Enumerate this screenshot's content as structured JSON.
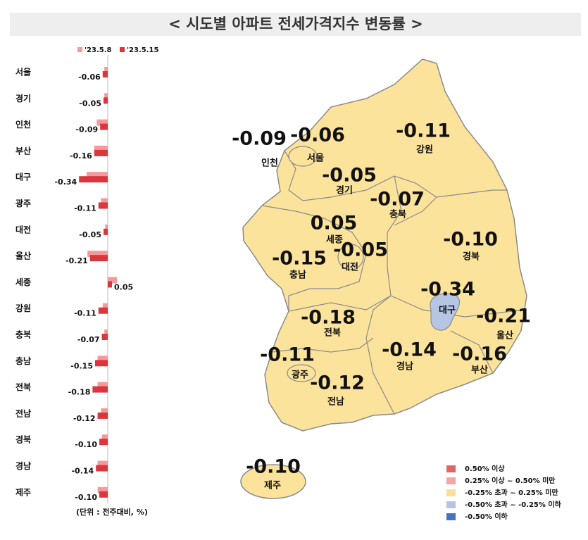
{
  "title": "< 시도별 아파트 전세가격지수 변동률 >",
  "chart_data": {
    "type": "bar",
    "orientation": "horizontal",
    "categories": [
      "서울",
      "경기",
      "인천",
      "부산",
      "대구",
      "광주",
      "대전",
      "울산",
      "세종",
      "강원",
      "충북",
      "충남",
      "전북",
      "전남",
      "경북",
      "경남",
      "제주"
    ],
    "series": [
      {
        "name": "'23.5.8",
        "color": "#f4999c",
        "values": [
          -0.04,
          -0.04,
          -0.13,
          -0.16,
          -0.25,
          -0.08,
          -0.03,
          -0.24,
          0.11,
          -0.06,
          -0.04,
          -0.12,
          -0.12,
          -0.08,
          -0.07,
          -0.12,
          -0.12
        ]
      },
      {
        "name": "'23.5.15",
        "color": "#d9363e",
        "values": [
          -0.06,
          -0.05,
          -0.09,
          -0.16,
          -0.34,
          -0.11,
          -0.05,
          -0.21,
          0.05,
          -0.11,
          -0.07,
          -0.15,
          -0.18,
          -0.12,
          -0.1,
          -0.14,
          -0.1
        ],
        "value_labels": [
          "-0.06",
          "-0.05",
          "-0.09",
          "-0.16",
          "-0.34",
          "-0.11",
          "-0.05",
          "-0.21",
          "0.05",
          "-0.11",
          "-0.07",
          "-0.15",
          "-0.18",
          "-0.12",
          "-0.10",
          "-0.14",
          "-0.10"
        ]
      }
    ],
    "xlim": [
      -0.4,
      0.15
    ],
    "note": "(단위 : 전주대비, %)"
  },
  "map": {
    "regions": [
      {
        "name": "인천",
        "value": "-0.09"
      },
      {
        "name": "서울",
        "value": "-0.06"
      },
      {
        "name": "경기",
        "value": "-0.05"
      },
      {
        "name": "강원",
        "value": "-0.11"
      },
      {
        "name": "충북",
        "value": "-0.07"
      },
      {
        "name": "세종",
        "value": "0.05"
      },
      {
        "name": "대전",
        "value": "-0.05"
      },
      {
        "name": "충남",
        "value": "-0.15"
      },
      {
        "name": "경북",
        "value": "-0.10"
      },
      {
        "name": "대구",
        "value": "-0.34"
      },
      {
        "name": "울산",
        "value": "-0.21"
      },
      {
        "name": "전북",
        "value": "-0.18"
      },
      {
        "name": "경남",
        "value": "-0.14"
      },
      {
        "name": "부산",
        "value": "-0.16"
      },
      {
        "name": "광주",
        "value": "-0.11"
      },
      {
        "name": "전남",
        "value": "-0.12"
      },
      {
        "name": "제주",
        "value": "-0.10"
      }
    ],
    "legend": [
      {
        "label": "0.50% 이상",
        "color": "#e06666"
      },
      {
        "label": "0.25% 이상 ~ 0.50% 미만",
        "color": "#f4a6a6"
      },
      {
        "label": "-0.25% 초과 ~ 0.25% 미만",
        "color": "#fbe09a"
      },
      {
        "label": "-0.50% 초과 ~ -0.25% 이하",
        "color": "#b6c5e4"
      },
      {
        "label": "-0.50% 이하",
        "color": "#4472c4"
      }
    ]
  }
}
